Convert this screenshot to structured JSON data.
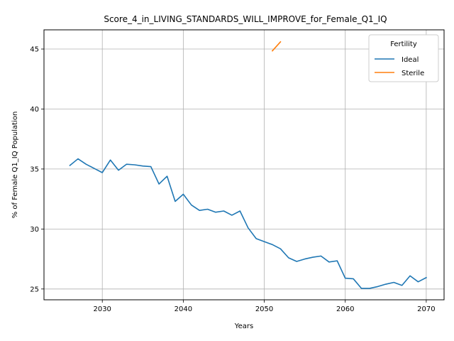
{
  "chart_data": {
    "type": "line",
    "title": "Score_4_in_LIVING_STANDARDS_WILL_IMPROVE_for_Female_Q1_IQ",
    "xlabel": "Years",
    "ylabel": "% of Female Q1_IQ Population",
    "xlim": [
      2022.8,
      2072.2
    ],
    "ylim": [
      24.1,
      46.6
    ],
    "xticks": [
      2030,
      2040,
      2050,
      2060,
      2070
    ],
    "yticks": [
      25,
      30,
      35,
      40,
      45
    ],
    "grid": true,
    "legend": {
      "title": "Fertility",
      "placement": "top-right"
    },
    "series": [
      {
        "name": "Ideal",
        "color": "#1f77b4",
        "x": [
          2026,
          2027,
          2028,
          2029,
          2030,
          2031,
          2032,
          2033,
          2034,
          2035,
          2036,
          2037,
          2038,
          2039,
          2040,
          2041,
          2042,
          2043,
          2044,
          2045,
          2046,
          2047,
          2048,
          2049,
          2050,
          2051,
          2052,
          2053,
          2054,
          2055,
          2056,
          2057,
          2058,
          2059,
          2060,
          2061,
          2062,
          2063,
          2064,
          2065,
          2066,
          2067,
          2068,
          2069,
          2070
        ],
        "y": [
          35.3,
          35.85,
          35.4,
          35.05,
          34.7,
          35.75,
          34.9,
          35.4,
          35.35,
          35.25,
          35.2,
          33.75,
          34.4,
          32.3,
          32.9,
          32.0,
          31.55,
          31.65,
          31.4,
          31.5,
          31.15,
          31.5,
          30.1,
          29.2,
          28.95,
          28.7,
          28.35,
          27.6,
          27.3,
          27.5,
          27.65,
          27.75,
          27.25,
          27.35,
          25.9,
          25.85,
          25.05,
          25.05,
          25.2,
          25.4,
          25.55,
          25.3,
          26.1,
          25.6,
          25.95
        ]
      },
      {
        "name": "Sterile",
        "color": "#ff7f0e",
        "x": [
          2051,
          2052
        ],
        "y": [
          44.85,
          45.6
        ]
      }
    ]
  }
}
